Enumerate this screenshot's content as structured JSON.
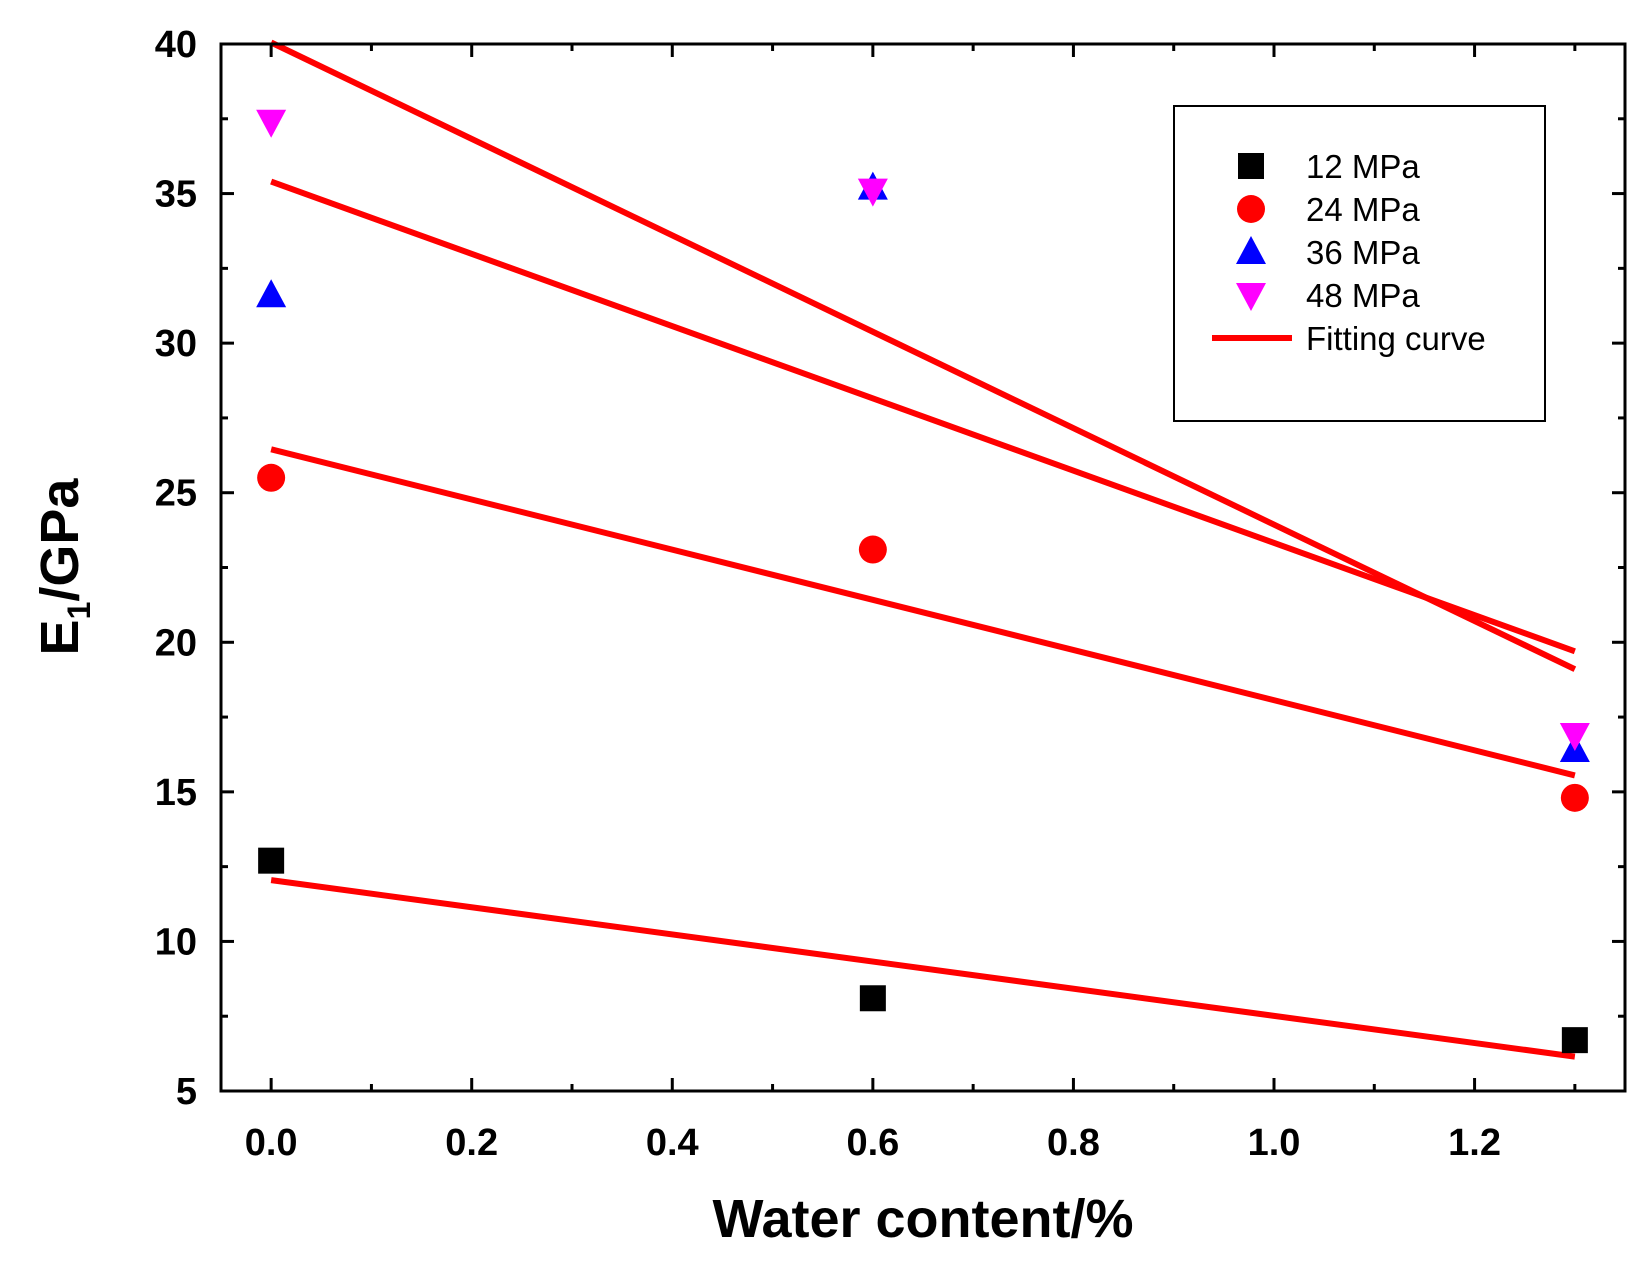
{
  "chart_data": {
    "type": "scatter",
    "xlabel": "Water content/%",
    "ylabel": {
      "main": "E",
      "sub": "1",
      "rest": "/GPa"
    },
    "xlim": [
      -0.05,
      1.35
    ],
    "ylim": [
      5,
      40
    ],
    "x_ticks": [
      {
        "value": 0.0,
        "label": "0.0"
      },
      {
        "value": 0.2,
        "label": "0.2"
      },
      {
        "value": 0.4,
        "label": "0.4"
      },
      {
        "value": 0.6,
        "label": "0.6"
      },
      {
        "value": 0.8,
        "label": "0.8"
      },
      {
        "value": 1.0,
        "label": "1.0"
      },
      {
        "value": 1.2,
        "label": "1.2"
      }
    ],
    "y_ticks": [
      {
        "value": 5,
        "label": "5"
      },
      {
        "value": 10,
        "label": "10"
      },
      {
        "value": 15,
        "label": "15"
      },
      {
        "value": 20,
        "label": "20"
      },
      {
        "value": 25,
        "label": "25"
      },
      {
        "value": 30,
        "label": "30"
      },
      {
        "value": 35,
        "label": "35"
      },
      {
        "value": 40,
        "label": "40"
      }
    ],
    "series": [
      {
        "name": "12 MPa",
        "marker": "square",
        "color": "#000000",
        "x": [
          0.0,
          0.6,
          1.3
        ],
        "y": [
          12.7,
          8.1,
          6.7
        ]
      },
      {
        "name": "24 MPa",
        "marker": "circle",
        "color": "#ff0000",
        "x": [
          0.0,
          0.6,
          1.3
        ],
        "y": [
          25.5,
          23.1,
          14.8
        ]
      },
      {
        "name": "36 MPa",
        "marker": "triangle-up",
        "color": "#0000ff",
        "x": [
          0.0,
          0.6,
          1.3
        ],
        "y": [
          31.6,
          35.2,
          16.4
        ]
      },
      {
        "name": "48 MPa",
        "marker": "triangle-down",
        "color": "#ff00ff",
        "x": [
          0.0,
          0.6,
          1.3
        ],
        "y": [
          37.4,
          35.1,
          16.9
        ]
      }
    ],
    "fits": [
      {
        "for": "12 MPa",
        "x": [
          0.0,
          1.3
        ],
        "y": [
          12.05,
          6.15
        ]
      },
      {
        "for": "24 MPa",
        "x": [
          0.0,
          1.3
        ],
        "y": [
          26.45,
          15.55
        ]
      },
      {
        "for": "36 MPa",
        "x": [
          0.0,
          1.3
        ],
        "y": [
          35.4,
          19.7
        ]
      },
      {
        "for": "48 MPa",
        "x": [
          0.0,
          1.3
        ],
        "y": [
          40.05,
          19.1
        ]
      }
    ],
    "fit_color": "#ff0000",
    "legend": {
      "position": "top-right",
      "entries": [
        "12 MPa",
        "24 MPa",
        "36 MPa",
        "48 MPa",
        "Fitting curve"
      ]
    }
  }
}
